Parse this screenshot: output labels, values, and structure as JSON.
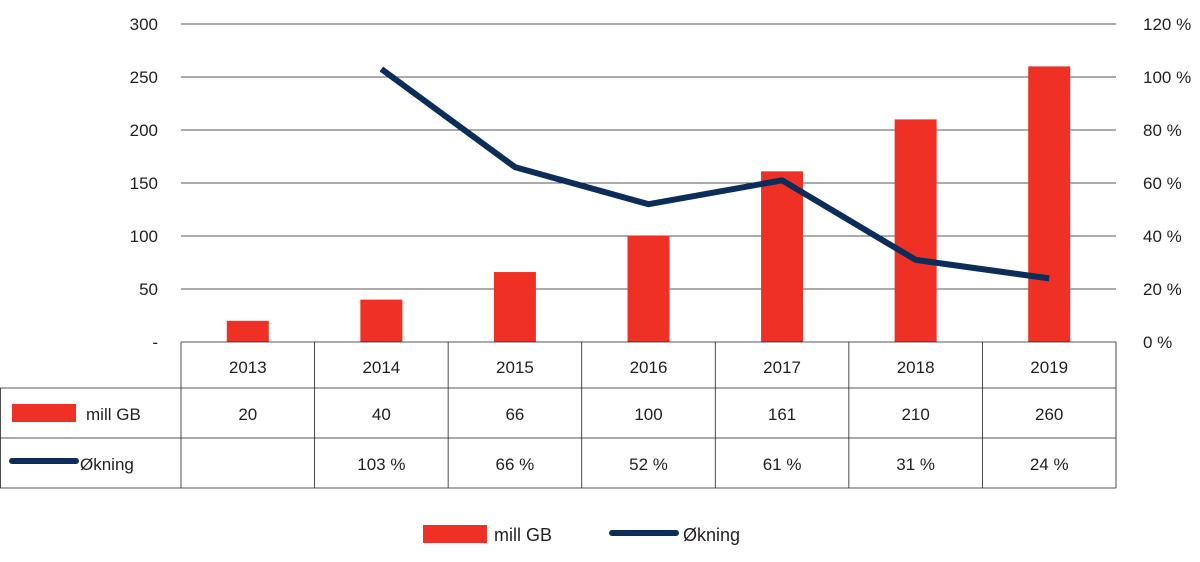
{
  "chart_data": {
    "type": "bar",
    "categories": [
      "2013",
      "2014",
      "2015",
      "2016",
      "2017",
      "2018",
      "2019"
    ],
    "series": [
      {
        "name": "mill GB",
        "kind": "bar",
        "axis": "left",
        "values": [
          20,
          40,
          66,
          100,
          161,
          210,
          260
        ],
        "labels": [
          "20",
          "40",
          "66",
          "100",
          "161",
          "210",
          "260"
        ]
      },
      {
        "name": "Økning",
        "kind": "line",
        "axis": "right",
        "values": [
          null,
          103,
          66,
          52,
          61,
          31,
          24
        ],
        "labels": [
          "",
          "103 %",
          "66 %",
          "52 %",
          "61 %",
          "31 %",
          "24 %"
        ]
      }
    ],
    "left_axis": {
      "ylim": [
        0,
        300
      ],
      "ticks": [
        {
          "v": 0,
          "label": "-"
        },
        {
          "v": 50,
          "label": "50"
        },
        {
          "v": 100,
          "label": "100"
        },
        {
          "v": 150,
          "label": "150"
        },
        {
          "v": 200,
          "label": "200"
        },
        {
          "v": 250,
          "label": "250"
        },
        {
          "v": 300,
          "label": "300"
        }
      ]
    },
    "right_axis": {
      "ylim": [
        0,
        120
      ],
      "ticks": [
        {
          "v": 0,
          "label": "0 %"
        },
        {
          "v": 20,
          "label": "20 %"
        },
        {
          "v": 40,
          "label": "40 %"
        },
        {
          "v": 60,
          "label": "60 %"
        },
        {
          "v": 80,
          "label": "80 %"
        },
        {
          "v": 100,
          "label": "100 %"
        },
        {
          "v": 120,
          "label": "120 %"
        }
      ]
    },
    "grid": true,
    "data_table": true,
    "legend": {
      "position": "bottom",
      "items": [
        "mill GB",
        "Økning"
      ]
    },
    "colors": {
      "bar": "#ee3124",
      "line": "#0c2c5a",
      "grid": "#231f20"
    }
  }
}
